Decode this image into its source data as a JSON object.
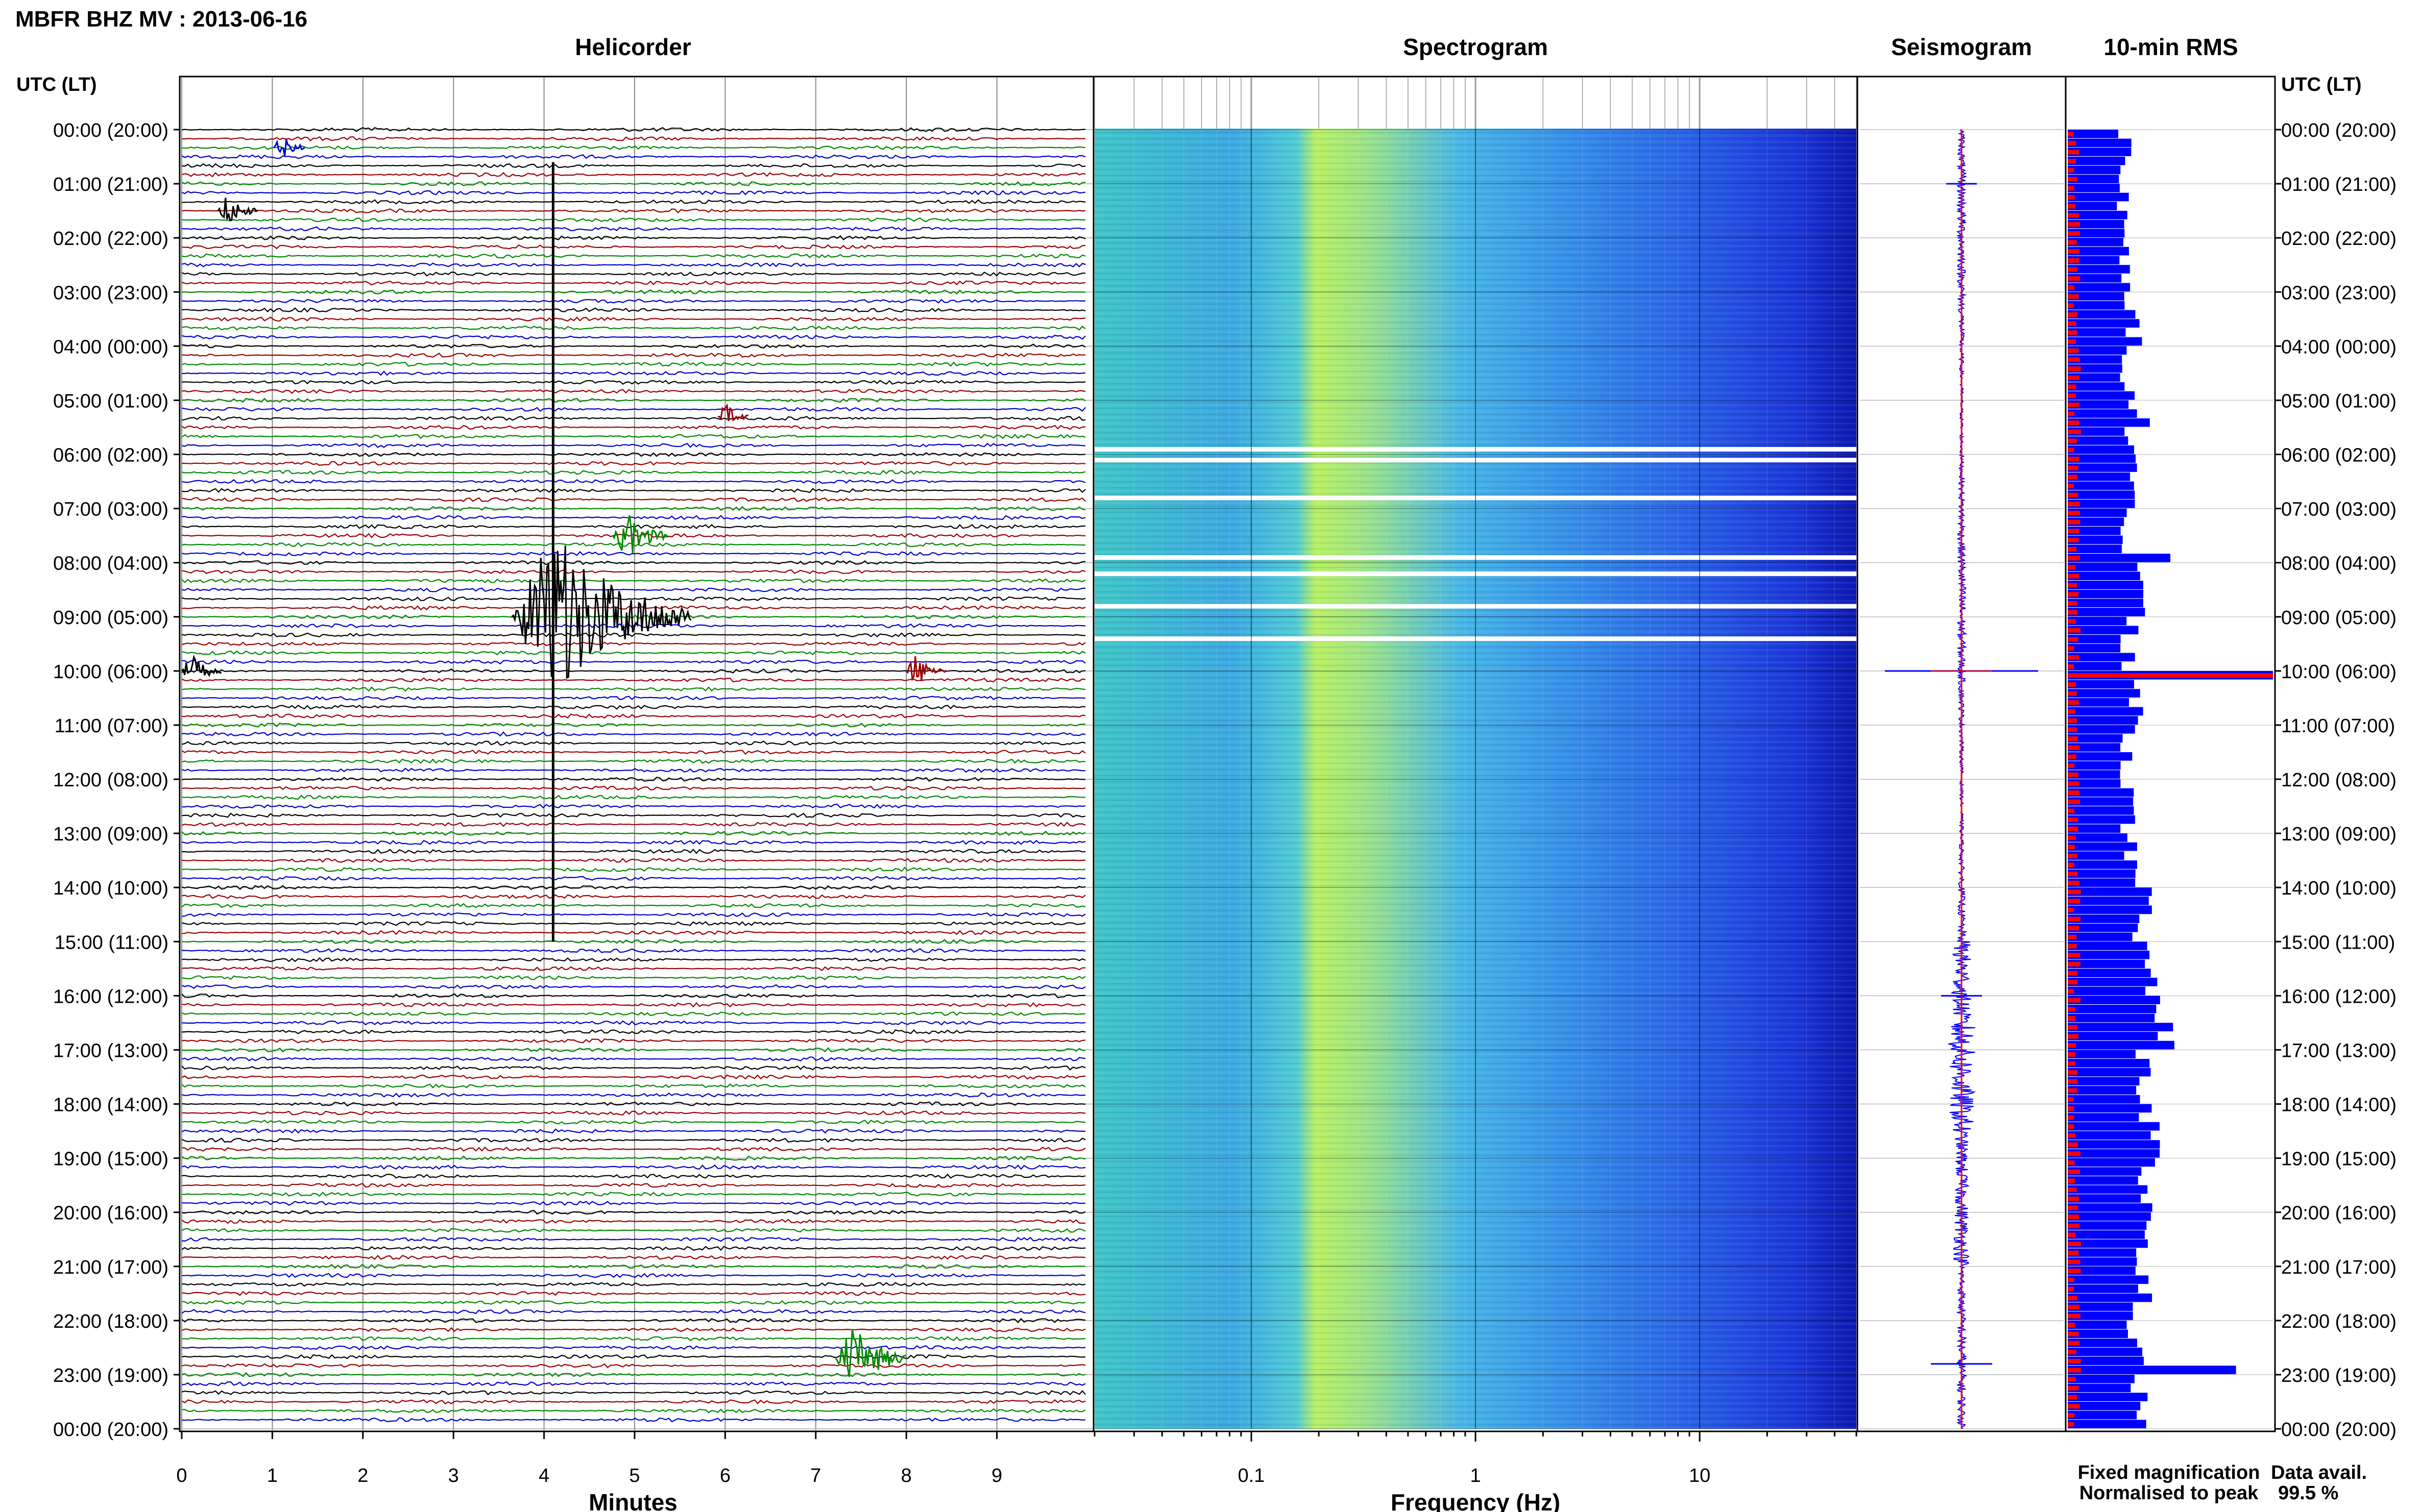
{
  "figure": {
    "title": "MBFR BHZ MV : 2013-06-16",
    "time_header_left": "UTC (LT)",
    "time_header_right": "UTC (LT)",
    "panel_titles": {
      "helicorder": "Helicorder",
      "spectrogram": "Spectrogram",
      "seismogram": "Seismogram",
      "rms": "10-min RMS"
    },
    "xlabel_helicorder": "Minutes",
    "xlabel_spectrogram": "Frequency (Hz)",
    "legend": {
      "fixed": "Fixed magnification",
      "normalised": "Normalised to peak",
      "fixed_color": "#0000ff",
      "normalised_color": "#ff0000"
    },
    "data_avail_label": "Data avail.",
    "data_avail_value": "99.5 %"
  },
  "chart_data": [
    {
      "type": "line",
      "name": "Helicorder",
      "y_tick_labels": [
        "00:00 (20:00)",
        "01:00 (21:00)",
        "02:00 (22:00)",
        "03:00 (23:00)",
        "04:00 (00:00)",
        "05:00 (01:00)",
        "06:00 (02:00)",
        "07:00 (03:00)",
        "08:00 (04:00)",
        "09:00 (05:00)",
        "10:00 (06:00)",
        "11:00 (07:00)",
        "12:00 (08:00)",
        "13:00 (09:00)",
        "14:00 (10:00)",
        "15:00 (11:00)",
        "16:00 (12:00)",
        "17:00 (13:00)",
        "18:00 (14:00)",
        "19:00 (15:00)",
        "20:00 (16:00)",
        "21:00 (17:00)",
        "22:00 (18:00)",
        "23:00 (19:00)",
        "00:00 (20:00)"
      ],
      "x_tick_labels": [
        "0",
        "1",
        "2",
        "3",
        "4",
        "5",
        "6",
        "7",
        "8",
        "9"
      ],
      "xlabel": "Minutes",
      "xlim": [
        0,
        10
      ],
      "trace_colors": [
        "#000000",
        "#990000",
        "#008800",
        "#0000cc"
      ],
      "traces_per_hour": 6,
      "events": [
        {
          "utc_hour": 0.33,
          "minute": 1.1,
          "amp": 0.3
        },
        {
          "utc_hour": 1.5,
          "minute": 0.5,
          "amp": 0.5
        },
        {
          "utc_hour": 5.3,
          "minute": 6.0,
          "amp": 0.3
        },
        {
          "utc_hour": 7.5,
          "minute": 4.9,
          "amp": 0.9
        },
        {
          "utc_hour": 9.0,
          "minute": 4.1,
          "amp": 4.0
        },
        {
          "utc_hour": 10.0,
          "minute": 0.1,
          "amp": 0.5
        },
        {
          "utc_hour": 10.0,
          "minute": 8.1,
          "amp": 0.5
        },
        {
          "utc_hour": 22.7,
          "minute": 7.4,
          "amp": 1.3
        }
      ],
      "long_spike": {
        "minute": 4.1,
        "utc_hour_start": 0.6,
        "utc_hour_end": 15.0
      }
    },
    {
      "type": "heatmap",
      "name": "Spectrogram",
      "xlabel": "Frequency (Hz)",
      "x_scale": "log",
      "xlim": [
        0.02,
        50
      ],
      "x_tick_labels": [
        "0.1",
        "1",
        "10"
      ],
      "band_edges_hz": [
        0.18,
        0.3,
        1.0,
        8.0
      ],
      "gap_hours": [
        5.9,
        6.1,
        6.8,
        7.9,
        8.2,
        8.8,
        9.4
      ]
    },
    {
      "type": "line",
      "name": "Seismogram",
      "ylim_hours": [
        0,
        24
      ],
      "series_colors": [
        "#0000ff",
        "#ff0000"
      ]
    },
    {
      "type": "bar",
      "name": "10-min RMS",
      "orientation": "horizontal",
      "series": [
        {
          "name": "Fixed magnification",
          "color": "#0000ff"
        },
        {
          "name": "Normalised to peak",
          "color": "#ff0000"
        }
      ],
      "hourly_fixed": [
        0.28,
        0.27,
        0.28,
        0.32,
        0.29,
        0.31,
        0.3,
        0.29,
        0.35,
        0.3,
        1.0,
        0.3,
        0.29,
        0.3,
        0.36,
        0.38,
        0.46,
        0.37,
        0.4,
        0.39,
        0.37,
        0.36,
        0.33,
        0.35
      ],
      "spikes": [
        {
          "utc_hour": 5.4,
          "value": 0.4
        },
        {
          "utc_hour": 7.8,
          "value": 0.5
        },
        {
          "utc_hour": 10.0,
          "value": 1.0
        },
        {
          "utc_hour": 22.8,
          "value": 0.82
        }
      ]
    }
  ]
}
